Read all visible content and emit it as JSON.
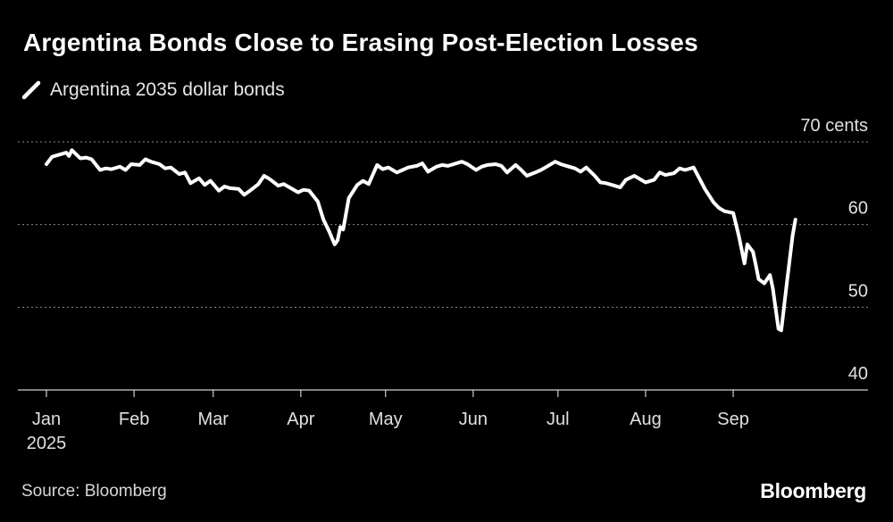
{
  "title": "Argentina Bonds Close to Erasing Post-Election Losses",
  "legend": {
    "label": "Argentina 2035 dollar bonds"
  },
  "footer": {
    "source": "Source: Bloomberg",
    "brand": "Bloomberg"
  },
  "colors": {
    "background": "#000000",
    "line": "#ffffff",
    "grid": "#8a8a8a",
    "text": "#e0e0e0"
  },
  "chart_data": {
    "type": "line",
    "title": "Argentina Bonds Close to Erasing Post-Election Losses",
    "xlabel": "",
    "ylabel": "",
    "ylim": [
      40,
      70
    ],
    "yticks": [
      {
        "value": 70,
        "label": "70 cents"
      },
      {
        "value": 60,
        "label": "60"
      },
      {
        "value": 50,
        "label": "50"
      },
      {
        "value": 40,
        "label": "40"
      }
    ],
    "xticks": [
      {
        "date": "2025-01-01",
        "label": "Jan",
        "sublabel": "2025"
      },
      {
        "date": "2025-02-01",
        "label": "Feb"
      },
      {
        "date": "2025-03-01",
        "label": "Mar"
      },
      {
        "date": "2025-04-01",
        "label": "Apr"
      },
      {
        "date": "2025-05-01",
        "label": "May"
      },
      {
        "date": "2025-06-01",
        "label": "Jun"
      },
      {
        "date": "2025-07-01",
        "label": "Jul"
      },
      {
        "date": "2025-08-01",
        "label": "Aug"
      },
      {
        "date": "2025-09-01",
        "label": "Sep"
      }
    ],
    "xlim": [
      "2025-01-01",
      "2025-10-01"
    ],
    "grid": true,
    "legend_position": "top-left",
    "series": [
      {
        "name": "Argentina 2035 dollar bonds",
        "points": [
          [
            "2025-01-01",
            67.3
          ],
          [
            "2025-01-03",
            68.2
          ],
          [
            "2025-01-06",
            68.5
          ],
          [
            "2025-01-08",
            68.7
          ],
          [
            "2025-01-09",
            68.3
          ],
          [
            "2025-01-10",
            69.0
          ],
          [
            "2025-01-13",
            68.0
          ],
          [
            "2025-01-15",
            68.1
          ],
          [
            "2025-01-17",
            67.9
          ],
          [
            "2025-01-20",
            66.6
          ],
          [
            "2025-01-22",
            66.8
          ],
          [
            "2025-01-24",
            66.7
          ],
          [
            "2025-01-27",
            67.0
          ],
          [
            "2025-01-29",
            66.6
          ],
          [
            "2025-01-31",
            67.3
          ],
          [
            "2025-02-03",
            67.2
          ],
          [
            "2025-02-05",
            67.9
          ],
          [
            "2025-02-07",
            67.6
          ],
          [
            "2025-02-10",
            67.3
          ],
          [
            "2025-02-12",
            66.8
          ],
          [
            "2025-02-14",
            66.9
          ],
          [
            "2025-02-17",
            66.1
          ],
          [
            "2025-02-19",
            66.3
          ],
          [
            "2025-02-21",
            65.0
          ],
          [
            "2025-02-24",
            65.6
          ],
          [
            "2025-02-26",
            64.8
          ],
          [
            "2025-02-28",
            65.3
          ],
          [
            "2025-03-03",
            64.1
          ],
          [
            "2025-03-05",
            64.6
          ],
          [
            "2025-03-07",
            64.4
          ],
          [
            "2025-03-10",
            64.3
          ],
          [
            "2025-03-12",
            63.6
          ],
          [
            "2025-03-14",
            64.1
          ],
          [
            "2025-03-17",
            64.9
          ],
          [
            "2025-03-19",
            65.9
          ],
          [
            "2025-03-21",
            65.5
          ],
          [
            "2025-03-24",
            64.7
          ],
          [
            "2025-03-26",
            64.9
          ],
          [
            "2025-03-28",
            64.5
          ],
          [
            "2025-03-31",
            63.9
          ],
          [
            "2025-04-02",
            64.2
          ],
          [
            "2025-04-04",
            64.1
          ],
          [
            "2025-04-07",
            62.8
          ],
          [
            "2025-04-09",
            60.6
          ],
          [
            "2025-04-11",
            59.2
          ],
          [
            "2025-04-12",
            58.4
          ],
          [
            "2025-04-13",
            57.6
          ],
          [
            "2025-04-14",
            58.1
          ],
          [
            "2025-04-15",
            59.7
          ],
          [
            "2025-04-16",
            59.4
          ],
          [
            "2025-04-18",
            63.2
          ],
          [
            "2025-04-21",
            64.8
          ],
          [
            "2025-04-23",
            65.3
          ],
          [
            "2025-04-25",
            64.9
          ],
          [
            "2025-04-28",
            67.2
          ],
          [
            "2025-04-30",
            66.7
          ],
          [
            "2025-05-02",
            66.9
          ],
          [
            "2025-05-05",
            66.3
          ],
          [
            "2025-05-07",
            66.6
          ],
          [
            "2025-05-09",
            66.9
          ],
          [
            "2025-05-12",
            67.1
          ],
          [
            "2025-05-14",
            67.4
          ],
          [
            "2025-05-16",
            66.4
          ],
          [
            "2025-05-19",
            67.0
          ],
          [
            "2025-05-21",
            67.2
          ],
          [
            "2025-05-23",
            67.1
          ],
          [
            "2025-05-26",
            67.4
          ],
          [
            "2025-05-28",
            67.6
          ],
          [
            "2025-05-30",
            67.3
          ],
          [
            "2025-06-02",
            66.6
          ],
          [
            "2025-06-04",
            67.0
          ],
          [
            "2025-06-06",
            67.2
          ],
          [
            "2025-06-09",
            67.3
          ],
          [
            "2025-06-11",
            67.1
          ],
          [
            "2025-06-13",
            66.3
          ],
          [
            "2025-06-16",
            67.2
          ],
          [
            "2025-06-18",
            66.6
          ],
          [
            "2025-06-20",
            65.9
          ],
          [
            "2025-06-23",
            66.3
          ],
          [
            "2025-06-25",
            66.6
          ],
          [
            "2025-06-27",
            67.0
          ],
          [
            "2025-06-30",
            67.6
          ],
          [
            "2025-07-02",
            67.3
          ],
          [
            "2025-07-04",
            67.1
          ],
          [
            "2025-07-07",
            66.8
          ],
          [
            "2025-07-09",
            66.4
          ],
          [
            "2025-07-11",
            66.9
          ],
          [
            "2025-07-14",
            65.9
          ],
          [
            "2025-07-16",
            65.1
          ],
          [
            "2025-07-18",
            65.0
          ],
          [
            "2025-07-21",
            64.7
          ],
          [
            "2025-07-23",
            64.5
          ],
          [
            "2025-07-25",
            65.4
          ],
          [
            "2025-07-28",
            65.9
          ],
          [
            "2025-07-30",
            65.5
          ],
          [
            "2025-08-01",
            65.1
          ],
          [
            "2025-08-04",
            65.4
          ],
          [
            "2025-08-06",
            66.3
          ],
          [
            "2025-08-08",
            66.0
          ],
          [
            "2025-08-11",
            66.2
          ],
          [
            "2025-08-13",
            66.8
          ],
          [
            "2025-08-15",
            66.6
          ],
          [
            "2025-08-18",
            66.9
          ],
          [
            "2025-08-20",
            65.6
          ],
          [
            "2025-08-22",
            64.3
          ],
          [
            "2025-08-25",
            62.7
          ],
          [
            "2025-08-27",
            62.0
          ],
          [
            "2025-08-29",
            61.6
          ],
          [
            "2025-09-01",
            61.4
          ],
          [
            "2025-09-03",
            58.6
          ],
          [
            "2025-09-05",
            55.3
          ],
          [
            "2025-09-06",
            57.6
          ],
          [
            "2025-09-08",
            56.7
          ],
          [
            "2025-09-09",
            55.1
          ],
          [
            "2025-09-10",
            53.4
          ],
          [
            "2025-09-12",
            52.9
          ],
          [
            "2025-09-14",
            53.9
          ],
          [
            "2025-09-15",
            52.3
          ],
          [
            "2025-09-17",
            47.4
          ],
          [
            "2025-09-18",
            47.2
          ],
          [
            "2025-09-20",
            53.0
          ],
          [
            "2025-09-22",
            58.6
          ],
          [
            "2025-09-23",
            60.6
          ]
        ]
      }
    ]
  }
}
